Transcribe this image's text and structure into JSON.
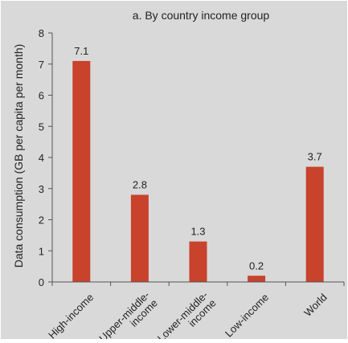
{
  "chart_data": {
    "type": "bar",
    "title": "a. By country income group",
    "xlabel": "",
    "ylabel": "Data consumption (GB per capita per month)",
    "categories": [
      [
        "High-income"
      ],
      [
        "Upper-middle-",
        "income"
      ],
      [
        "Lower-middle-",
        "income"
      ],
      [
        "Low-income"
      ],
      [
        "World"
      ]
    ],
    "values": [
      7.1,
      2.8,
      1.3,
      0.2,
      3.7
    ],
    "value_labels": [
      "7.1",
      "2.8",
      "1.3",
      "0.2",
      "3.7"
    ],
    "ylim": [
      0,
      8
    ],
    "yticks": [
      0,
      1,
      2,
      3,
      4,
      5,
      6,
      7,
      8
    ],
    "grid": false,
    "legend": "none",
    "bar_color": "#c8422c",
    "text_color": "#222222",
    "axis_color": "#555555"
  }
}
